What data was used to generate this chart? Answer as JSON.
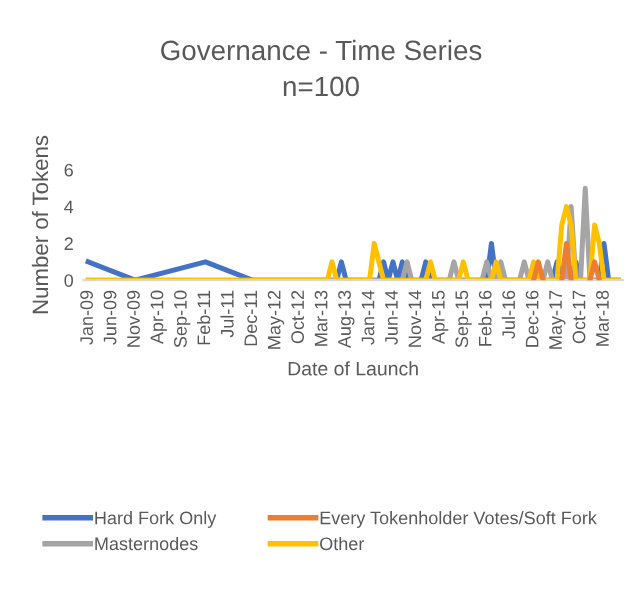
{
  "chart_data": {
    "type": "line",
    "title": "Governance - Time Series",
    "subtitle": "n=100",
    "xlabel": "Date of Launch",
    "ylabel": "Number of Tokens",
    "categories": [
      "Jan-09",
      null,
      null,
      null,
      null,
      "Jun-09",
      null,
      null,
      null,
      null,
      "Nov-09",
      null,
      null,
      null,
      null,
      "Apr-10",
      null,
      null,
      null,
      null,
      "Sep-10",
      null,
      null,
      null,
      null,
      "Feb-11",
      null,
      null,
      null,
      null,
      "Jul-11",
      null,
      null,
      null,
      null,
      "Dec-11",
      null,
      null,
      null,
      null,
      "May-12",
      null,
      null,
      null,
      null,
      "Oct-12",
      null,
      null,
      null,
      null,
      "Mar-13",
      null,
      null,
      null,
      null,
      "Aug-13",
      null,
      null,
      null,
      null,
      "Jan-14",
      null,
      null,
      null,
      null,
      "Jun-14",
      null,
      null,
      null,
      null,
      "Nov-14",
      null,
      null,
      null,
      null,
      "Apr-15",
      null,
      null,
      null,
      null,
      "Sep-15",
      null,
      null,
      null,
      null,
      "Feb-16",
      null,
      null,
      null,
      null,
      "Jul-16",
      null,
      null,
      null,
      null,
      "Dec-16",
      null,
      null,
      null,
      null,
      "May-17",
      null,
      null,
      null,
      null,
      "Oct-17",
      null,
      null,
      null,
      null,
      "Mar-18",
      null,
      null,
      null
    ],
    "series": [
      {
        "name": "Hard Fork Only",
        "color": "#4472c4",
        "values": [
          1,
          null,
          null,
          null,
          null,
          null,
          null,
          null,
          null,
          null,
          0,
          null,
          null,
          null,
          null,
          null,
          null,
          null,
          null,
          null,
          null,
          null,
          null,
          null,
          null,
          1,
          null,
          null,
          null,
          null,
          null,
          null,
          null,
          null,
          null,
          0,
          0,
          0,
          0,
          0,
          0,
          0,
          0,
          0,
          0,
          0,
          0,
          0,
          0,
          0,
          0,
          0,
          0,
          0,
          1,
          0,
          0,
          0,
          0,
          0,
          0,
          0,
          0,
          1,
          0,
          1,
          0,
          1,
          0,
          0,
          0,
          0,
          1,
          0,
          0,
          0,
          0,
          0,
          0,
          0,
          0,
          0,
          0,
          0,
          0,
          0,
          2,
          0,
          0,
          0,
          0,
          0,
          0,
          0,
          0,
          0,
          0,
          0,
          0,
          0,
          1,
          0,
          0,
          0,
          1,
          0,
          0,
          0,
          0,
          0,
          2,
          0,
          0,
          0
        ]
      },
      {
        "name": "Every Tokenholder Votes/Soft Fork",
        "color": "#ed7d31",
        "values": [
          null,
          null,
          null,
          null,
          null,
          null,
          null,
          null,
          null,
          null,
          null,
          null,
          null,
          null,
          null,
          null,
          null,
          null,
          null,
          null,
          null,
          null,
          null,
          null,
          null,
          null,
          null,
          null,
          null,
          null,
          null,
          null,
          null,
          null,
          null,
          null,
          null,
          null,
          null,
          null,
          null,
          null,
          null,
          null,
          null,
          null,
          null,
          null,
          null,
          null,
          null,
          null,
          null,
          null,
          null,
          null,
          null,
          null,
          null,
          null,
          null,
          null,
          null,
          null,
          null,
          null,
          null,
          null,
          null,
          null,
          null,
          null,
          null,
          null,
          null,
          null,
          null,
          null,
          null,
          null,
          null,
          null,
          null,
          null,
          null,
          null,
          null,
          null,
          null,
          null,
          null,
          null,
          null,
          null,
          null,
          0,
          1,
          0,
          null,
          null,
          null,
          0,
          2,
          0,
          null,
          null,
          null,
          0,
          1,
          0,
          null,
          null,
          null,
          null
        ]
      },
      {
        "name": "Masternodes",
        "color": "#a5a5a5",
        "values": [
          0,
          0,
          0,
          0,
          0,
          0,
          0,
          0,
          0,
          0,
          0,
          0,
          0,
          0,
          0,
          0,
          0,
          0,
          0,
          0,
          0,
          0,
          0,
          0,
          0,
          0,
          0,
          0,
          0,
          0,
          0,
          0,
          0,
          0,
          0,
          0,
          0,
          0,
          0,
          0,
          0,
          0,
          0,
          0,
          0,
          0,
          0,
          0,
          0,
          0,
          0,
          0,
          0,
          0,
          0,
          0,
          0,
          0,
          0,
          0,
          0,
          0,
          0,
          0,
          0,
          0,
          0,
          0,
          1,
          0,
          0,
          0,
          0,
          0,
          0,
          0,
          0,
          0,
          1,
          0,
          0,
          0,
          0,
          0,
          0,
          1,
          0,
          0,
          1,
          0,
          0,
          0,
          0,
          1,
          0,
          0,
          0,
          0,
          1,
          0,
          0,
          0,
          0,
          4,
          0,
          0,
          5,
          0,
          0,
          0,
          0,
          0,
          0,
          0
        ]
      },
      {
        "name": "Other",
        "color": "#ffc000",
        "values": [
          0,
          0,
          0,
          0,
          0,
          0,
          0,
          0,
          0,
          0,
          0,
          0,
          0,
          0,
          0,
          0,
          0,
          0,
          0,
          0,
          0,
          0,
          0,
          0,
          0,
          0,
          0,
          0,
          0,
          0,
          0,
          0,
          0,
          0,
          0,
          0,
          0,
          0,
          0,
          0,
          0,
          0,
          0,
          0,
          0,
          0,
          0,
          0,
          0,
          0,
          0,
          0,
          1,
          0,
          0,
          0,
          0,
          0,
          0,
          0,
          0,
          2,
          1,
          0,
          0,
          0,
          0,
          0,
          0,
          0,
          0,
          0,
          0,
          1,
          0,
          0,
          0,
          0,
          0,
          0,
          1,
          0,
          0,
          0,
          0,
          0,
          0,
          1,
          0,
          0,
          0,
          0,
          0,
          0,
          0,
          1,
          0,
          0,
          0,
          0,
          0,
          3,
          4,
          3,
          0,
          0,
          0,
          0,
          3,
          2,
          0,
          0,
          0,
          0
        ]
      }
    ],
    "ylim": [
      0,
      6
    ],
    "yticks": [
      0,
      2,
      4,
      6
    ],
    "grid": false,
    "legend": "bottom",
    "marker": "none",
    "line_style": "solid"
  }
}
